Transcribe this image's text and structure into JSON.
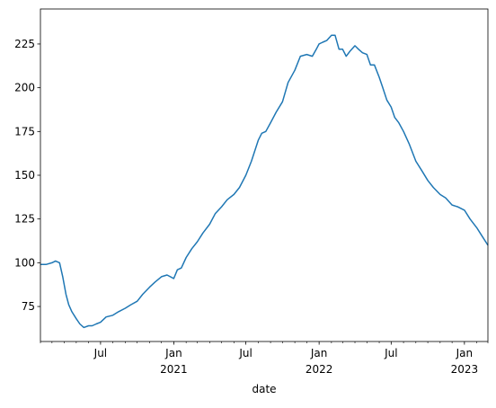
{
  "chart_data": {
    "type": "line",
    "xlabel": "date",
    "ylabel": "",
    "title": "",
    "xlim": [
      "2020-02-01",
      "2023-03-01"
    ],
    "ylim": [
      55,
      245
    ],
    "grid": false,
    "legend": "none",
    "colors": {
      "line": "#1f77b4",
      "axis": "#000000"
    },
    "y_ticks": [
      75,
      100,
      125,
      150,
      175,
      200,
      225
    ],
    "x_major_ticks": [
      {
        "date": "2020-07-01",
        "label": "Jul",
        "sub": ""
      },
      {
        "date": "2021-01-01",
        "label": "Jan",
        "sub": "2021"
      },
      {
        "date": "2021-07-01",
        "label": "Jul",
        "sub": ""
      },
      {
        "date": "2022-01-01",
        "label": "Jan",
        "sub": "2022"
      },
      {
        "date": "2022-07-01",
        "label": "Jul",
        "sub": ""
      },
      {
        "date": "2023-01-01",
        "label": "Jan",
        "sub": "2023"
      }
    ],
    "series": [
      {
        "x": [
          "2020-02-01",
          "2020-02-15",
          "2020-03-01",
          "2020-03-10",
          "2020-03-20",
          "2020-03-28",
          "2020-04-05",
          "2020-04-12",
          "2020-04-20",
          "2020-05-01",
          "2020-05-10",
          "2020-05-20",
          "2020-06-01",
          "2020-06-10",
          "2020-06-20",
          "2020-07-01",
          "2020-07-15",
          "2020-08-01",
          "2020-08-15",
          "2020-09-01",
          "2020-09-15",
          "2020-10-01",
          "2020-10-15",
          "2020-11-01",
          "2020-11-15",
          "2020-12-01",
          "2020-12-15",
          "2021-01-01",
          "2021-01-10",
          "2021-01-20",
          "2021-02-01",
          "2021-02-15",
          "2021-03-01",
          "2021-03-15",
          "2021-04-01",
          "2021-04-15",
          "2021-05-01",
          "2021-05-15",
          "2021-06-01",
          "2021-06-15",
          "2021-07-01",
          "2021-07-15",
          "2021-08-01",
          "2021-08-10",
          "2021-08-20",
          "2021-09-01",
          "2021-09-15",
          "2021-10-01",
          "2021-10-15",
          "2021-11-01",
          "2021-11-15",
          "2021-12-01",
          "2021-12-15",
          "2021-12-25",
          "2022-01-01",
          "2022-01-10",
          "2022-01-20",
          "2022-02-01",
          "2022-02-10",
          "2022-02-20",
          "2022-03-01",
          "2022-03-10",
          "2022-03-20",
          "2022-04-01",
          "2022-04-10",
          "2022-04-20",
          "2022-05-01",
          "2022-05-10",
          "2022-05-20",
          "2022-06-01",
          "2022-06-10",
          "2022-06-20",
          "2022-07-01",
          "2022-07-10",
          "2022-07-20",
          "2022-08-01",
          "2022-08-15",
          "2022-09-01",
          "2022-09-15",
          "2022-10-01",
          "2022-10-15",
          "2022-11-01",
          "2022-11-15",
          "2022-12-01",
          "2022-12-15",
          "2023-01-01",
          "2023-01-15",
          "2023-02-01",
          "2023-02-15",
          "2023-03-01"
        ],
        "y": [
          99,
          99,
          100,
          101,
          100,
          92,
          82,
          76,
          72,
          68,
          65,
          63,
          64,
          64,
          65,
          66,
          69,
          70,
          72,
          74,
          76,
          78,
          82,
          86,
          89,
          92,
          93,
          91,
          96,
          97,
          103,
          108,
          112,
          117,
          122,
          128,
          132,
          136,
          139,
          143,
          150,
          158,
          170,
          174,
          175,
          180,
          186,
          192,
          203,
          210,
          218,
          219,
          218,
          222,
          225,
          226,
          227,
          230,
          230,
          222,
          222,
          218,
          221,
          224,
          222,
          220,
          219,
          213,
          213,
          206,
          200,
          193,
          189,
          183,
          180,
          175,
          168,
          158,
          153,
          147,
          143,
          139,
          137,
          133,
          132,
          130,
          125,
          120,
          115,
          110
        ]
      }
    ]
  }
}
